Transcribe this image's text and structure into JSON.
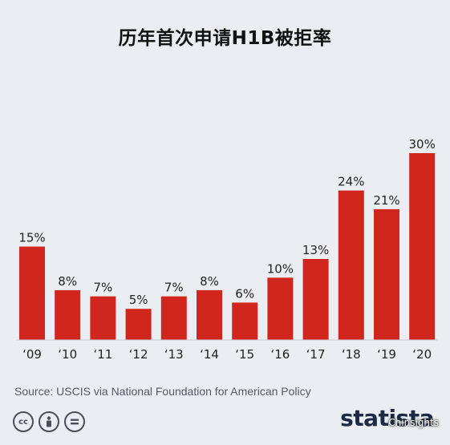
{
  "chart_data": {
    "type": "bar",
    "title": "历年首次申请H1B被拒率",
    "categories": [
      "‘09",
      "‘10",
      "‘11",
      "‘12",
      "‘13",
      "‘14",
      "‘15",
      "‘16",
      "‘17",
      "‘18",
      "‘19",
      "‘20"
    ],
    "values": [
      15,
      8,
      7,
      5,
      7,
      8,
      6,
      10,
      13,
      24,
      21,
      30
    ],
    "data_labels": [
      "15%",
      "8%",
      "7%",
      "5%",
      "7%",
      "8%",
      "6%",
      "10%",
      "13%",
      "24%",
      "21%",
      "30%"
    ],
    "unit": "%",
    "ylim": [
      0,
      30
    ],
    "grid": false,
    "bar_color": "#d0261e"
  },
  "footer": {
    "source": "Source: USCIS via National Foundation for American Policy",
    "brand": "statista",
    "watermark": "Chinsights",
    "license_icons": [
      "cc-icon",
      "by-icon",
      "nd-icon"
    ]
  }
}
